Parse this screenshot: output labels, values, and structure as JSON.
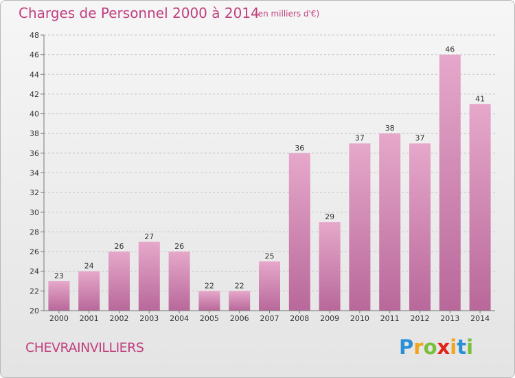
{
  "header": {
    "title": "Charges de Personnel 2000 à 2014",
    "subtitle": "(en milliers d'€)"
  },
  "footer": {
    "commune": "CHEVRAINVILLIERS",
    "logo_text": "Proxiti",
    "logo_letters": [
      {
        "char": "P",
        "color": "#2a8fd6"
      },
      {
        "char": "r",
        "color": "#f2a51a"
      },
      {
        "char": "o",
        "color": "#7abf3a"
      },
      {
        "char": "x",
        "color": "#e2231a"
      },
      {
        "char": "i",
        "color": "#f2a51a"
      },
      {
        "char": "t",
        "color": "#2a8fd6"
      },
      {
        "char": "i",
        "color": "#7abf3a"
      }
    ]
  },
  "colors": {
    "accent": "#c0407f",
    "bar_top": "#e6a8ca",
    "bar_bottom": "#b8689a"
  },
  "chart_data": {
    "type": "bar",
    "categories": [
      "2000",
      "2001",
      "2002",
      "2003",
      "2004",
      "2005",
      "2006",
      "2007",
      "2008",
      "2009",
      "2010",
      "2011",
      "2012",
      "2013",
      "2014"
    ],
    "values": [
      23,
      24,
      26,
      27,
      26,
      22,
      22,
      25,
      36,
      29,
      37,
      38,
      37,
      46,
      41
    ],
    "title": "Charges de Personnel 2000 à 2014",
    "subtitle": "(en milliers d'€)",
    "xlabel": "",
    "ylabel": "",
    "ylim": [
      20,
      48
    ],
    "yticks": [
      20,
      22,
      24,
      26,
      28,
      30,
      32,
      34,
      36,
      38,
      40,
      42,
      44,
      46,
      48
    ],
    "grid": "horizontal-dashed",
    "legend": "none"
  }
}
